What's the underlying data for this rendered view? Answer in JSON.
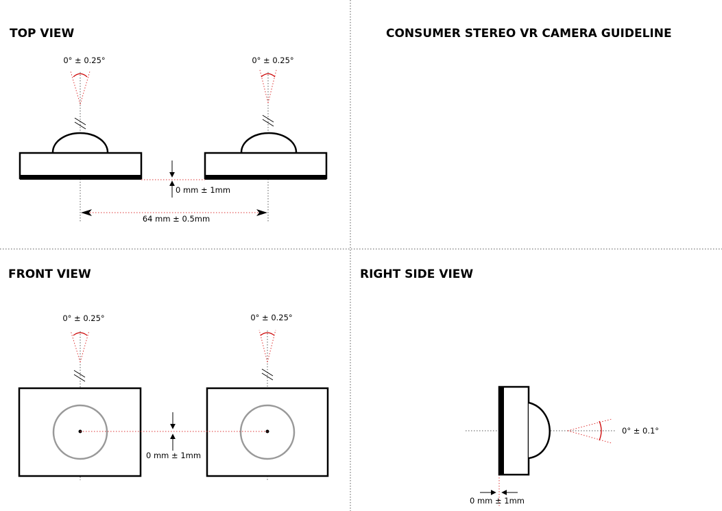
{
  "title": "CONSUMER STEREO VR CAMERA GUIDELINE",
  "views": {
    "top": "TOP VIEW",
    "front": "FRONT VIEW",
    "side": "RIGHT SIDE VIEW"
  },
  "annotations": {
    "top_left_angle": "0° ± 0.25°",
    "top_right_angle": "0° ± 0.25°",
    "top_offset": "0 mm ± 1mm",
    "top_spacing": "64 mm ± 0.5mm",
    "front_left_angle": "0° ± 0.25°",
    "front_right_angle": "0° ± 0.25°",
    "front_offset": "0 mm ± 1mm",
    "side_angle": "0° ± 0.1°",
    "side_offset": "0 mm ± 1mm"
  },
  "colors": {
    "tolerance_lines": "#dd3333",
    "lens_ring": "#999999",
    "outline": "#000000"
  }
}
